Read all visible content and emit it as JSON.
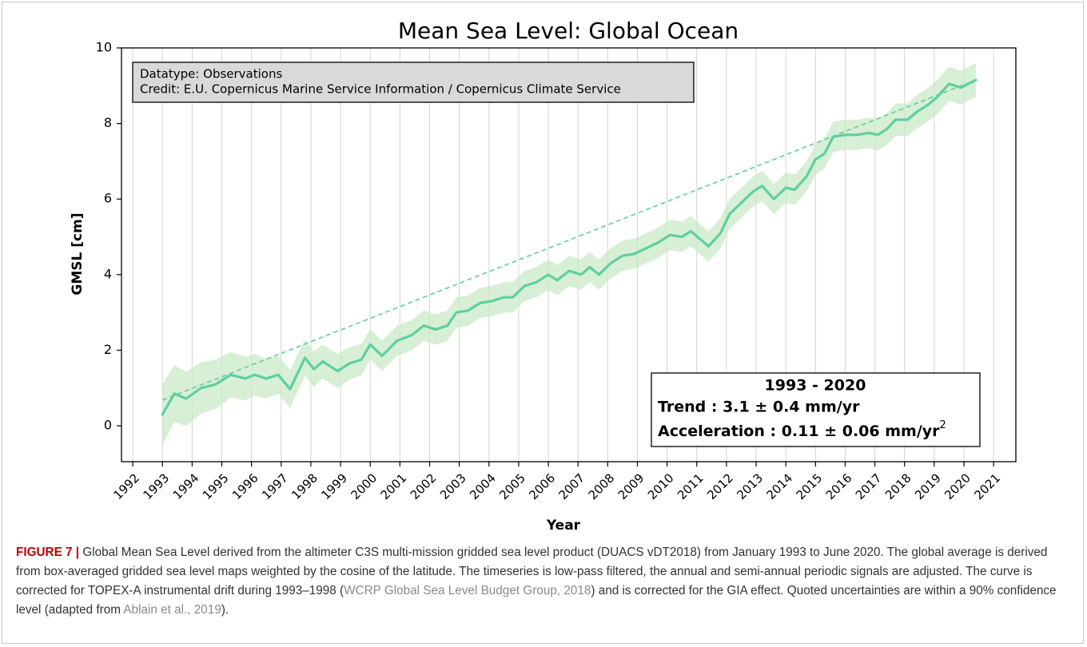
{
  "chart_data": {
    "type": "line",
    "title": "Mean Sea Level: Global Ocean",
    "xlabel": "Year",
    "ylabel": "GMSL [cm]",
    "color": "#5fcf9f",
    "band_color": "#c9e9c6",
    "xlim": [
      1991.62,
      2021.75
    ],
    "ylim": [
      -0.95,
      10
    ],
    "xticks": [
      1992,
      1993,
      1994,
      1995,
      1996,
      1997,
      1998,
      1999,
      2000,
      2001,
      2002,
      2003,
      2004,
      2005,
      2006,
      2007,
      2008,
      2009,
      2010,
      2011,
      2012,
      2013,
      2014,
      2015,
      2016,
      2017,
      2018,
      2019,
      2020,
      2021
    ],
    "yticks": [
      0,
      2,
      4,
      6,
      8,
      10
    ],
    "grid": "x",
    "x": [
      1993.0,
      1993.4,
      1993.8,
      1994.3,
      1994.8,
      1995.3,
      1995.8,
      1996.1,
      1996.5,
      1996.9,
      1997.3,
      1997.8,
      1998.1,
      1998.4,
      1998.9,
      1999.3,
      1999.7,
      2000.0,
      2000.4,
      2000.9,
      2001.4,
      2001.8,
      2002.2,
      2002.6,
      2002.9,
      2003.3,
      2003.7,
      2004.1,
      2004.5,
      2004.8,
      2005.2,
      2005.6,
      2006.0,
      2006.3,
      2006.7,
      2007.1,
      2007.4,
      2007.7,
      2008.1,
      2008.5,
      2008.9,
      2009.3,
      2009.7,
      2010.1,
      2010.5,
      2010.8,
      2011.1,
      2011.4,
      2011.8,
      2012.1,
      2012.5,
      2012.9,
      2013.2,
      2013.6,
      2014.0,
      2014.3,
      2014.7,
      2015.0,
      2015.3,
      2015.6,
      2016.0,
      2016.4,
      2016.8,
      2017.1,
      2017.4,
      2017.7,
      2018.1,
      2018.4,
      2018.8,
      2019.1,
      2019.5,
      2019.9,
      2020.4
    ],
    "values": [
      0.3,
      0.85,
      0.72,
      1.0,
      1.1,
      1.35,
      1.25,
      1.35,
      1.25,
      1.35,
      0.97,
      1.8,
      1.5,
      1.7,
      1.45,
      1.65,
      1.75,
      2.15,
      1.85,
      2.25,
      2.4,
      2.65,
      2.55,
      2.65,
      3.0,
      3.05,
      3.25,
      3.3,
      3.4,
      3.4,
      3.7,
      3.8,
      4.0,
      3.85,
      4.1,
      4.0,
      4.2,
      4.0,
      4.3,
      4.5,
      4.55,
      4.7,
      4.85,
      5.05,
      5.0,
      5.15,
      4.95,
      4.75,
      5.1,
      5.6,
      5.9,
      6.2,
      6.35,
      6.0,
      6.3,
      6.25,
      6.6,
      7.05,
      7.2,
      7.65,
      7.7,
      7.7,
      7.75,
      7.7,
      7.85,
      8.1,
      8.1,
      8.3,
      8.5,
      8.7,
      9.05,
      8.95,
      9.15
    ],
    "uncertainty": [
      0.8,
      0.75,
      0.72,
      0.68,
      0.65,
      0.6,
      0.58,
      0.55,
      0.52,
      0.5,
      0.5,
      0.48,
      0.47,
      0.45,
      0.45,
      0.43,
      0.42,
      0.4,
      0.4,
      0.4,
      0.4,
      0.4,
      0.4,
      0.4,
      0.4,
      0.4,
      0.4,
      0.4,
      0.4,
      0.4,
      0.4,
      0.4,
      0.4,
      0.4,
      0.4,
      0.4,
      0.4,
      0.4,
      0.4,
      0.4,
      0.4,
      0.4,
      0.4,
      0.4,
      0.4,
      0.4,
      0.4,
      0.4,
      0.4,
      0.4,
      0.4,
      0.4,
      0.4,
      0.4,
      0.4,
      0.4,
      0.4,
      0.4,
      0.4,
      0.4,
      0.4,
      0.4,
      0.4,
      0.42,
      0.42,
      0.43,
      0.43,
      0.44,
      0.44,
      0.45,
      0.45,
      0.45,
      0.45
    ],
    "trend": {
      "x": [
        1993.0,
        2020.4
      ],
      "values": [
        0.68,
        9.15
      ]
    },
    "info_box": {
      "line_1": "Datatype: Observations",
      "line_2": "Credit: E.U. Copernicus Marine Service Information / Copernicus Climate Service"
    },
    "stats_box": {
      "period": "1993 - 2020",
      "trend": "Trend : 3.1 ± 0.4 mm/yr",
      "acceleration": "Acceleration : 0.11 ± 0.06 mm/yr",
      "acceleration_exponent": "2"
    }
  },
  "caption": {
    "label": "FIGURE 7 |",
    "text_1": " Global Mean Sea Level derived from the altimeter C3S multi-mission gridded sea level product (DUACS vDT2018) from January 1993 to June 2020. The global average is derived from box-averaged gridded sea level maps weighted by the cosine of the latitude. The timeseries is low-pass filtered, the annual and semi-annual periodic signals are adjusted. The curve is corrected for TOPEX-A instrumental drift during 1993–1998 (",
    "ref_1": "WCRP Global Sea Level Budget Group, 2018",
    "text_2": ") and is corrected for the GIA effect. Quoted uncertainties are within a 90% confidence level (adapted from ",
    "ref_2": "Ablain et al., 2019",
    "text_3": ")."
  }
}
